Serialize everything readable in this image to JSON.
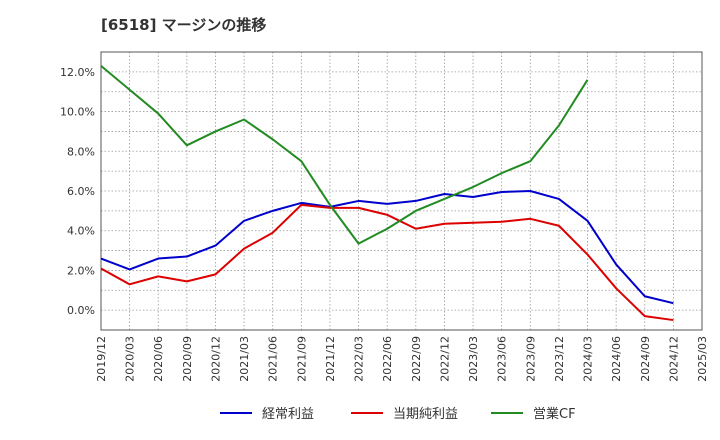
{
  "chart_data": {
    "type": "line",
    "title": "[6518]  マージンの推移",
    "xlabel": "",
    "ylabel": "",
    "x": [
      "2019/12",
      "2020/03",
      "2020/06",
      "2020/09",
      "2020/12",
      "2021/03",
      "2021/06",
      "2021/09",
      "2021/12",
      "2022/03",
      "2022/06",
      "2022/09",
      "2022/12",
      "2023/03",
      "2023/06",
      "2023/09",
      "2023/12",
      "2024/03",
      "2024/06",
      "2024/09",
      "2024/12",
      "2025/03"
    ],
    "ylim": [
      -1.0,
      13.0
    ],
    "yticks": [
      0,
      2,
      4,
      6,
      8,
      10,
      12
    ],
    "ytick_labels": [
      "0.0%",
      "2.0%",
      "4.0%",
      "6.0%",
      "8.0%",
      "10.0%",
      "12.0%"
    ],
    "grid": true,
    "legend_position": "bottom",
    "series": [
      {
        "name": "経常利益",
        "color": "#0000cc",
        "values": [
          2.6,
          2.05,
          2.6,
          2.7,
          3.25,
          4.5,
          5.0,
          5.4,
          5.2,
          5.5,
          5.35,
          5.5,
          5.85,
          5.7,
          5.95,
          6.0,
          5.6,
          4.5,
          2.3,
          0.7,
          0.35,
          null
        ]
      },
      {
        "name": "当期純利益",
        "color": "#dd0000",
        "values": [
          2.1,
          1.3,
          1.7,
          1.45,
          1.8,
          3.1,
          3.9,
          5.3,
          5.15,
          5.15,
          4.8,
          4.1,
          4.35,
          4.4,
          4.45,
          4.6,
          4.25,
          2.8,
          1.1,
          -0.3,
          -0.5,
          null
        ]
      },
      {
        "name": "営業CF",
        "color": "#228b22",
        "values": [
          12.3,
          11.1,
          9.9,
          8.3,
          9.0,
          9.6,
          8.6,
          7.5,
          5.3,
          3.35,
          4.1,
          5.0,
          5.6,
          6.2,
          6.9,
          7.5,
          9.3,
          11.6,
          null,
          null,
          null,
          null
        ]
      }
    ]
  }
}
